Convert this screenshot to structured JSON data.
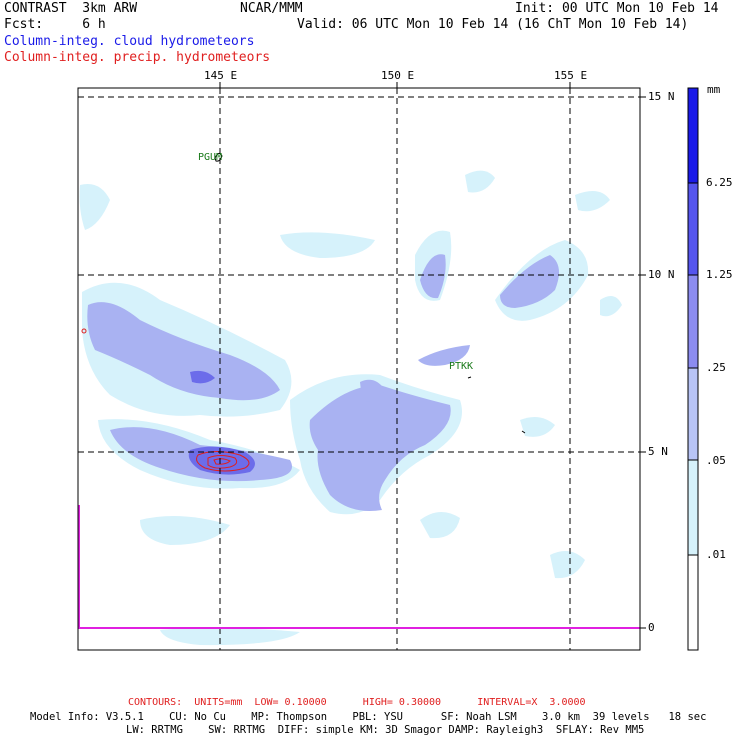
{
  "header": {
    "model": "CONTRAST  3km ARW",
    "forecast": "Fcst:     6 h",
    "org": "NCAR/MMM",
    "init": "Init: 00 UTC Mon 10 Feb 14",
    "valid": "Valid: 06 UTC Mon 10 Feb 14 (16 ChT Mon 10 Feb 14)",
    "field1": "Column-integ. cloud hydrometeors",
    "field2": "Column-integ. precip. hydrometeors"
  },
  "map": {
    "lon_labels": [
      "145 E",
      "150 E",
      "155 E"
    ],
    "lat_labels": [
      "15 N",
      "10 N",
      "5 N",
      "0"
    ],
    "stations": [
      "PGUM",
      "PTKK"
    ]
  },
  "colorbar": {
    "unit": "mm",
    "levels": [
      "6.25",
      "1.25",
      ".25",
      ".05",
      ".01"
    ],
    "colors": [
      "#1a1ae8",
      "#5555ee",
      "#8c8cf0",
      "#b8c4f6",
      "#d6f2fb",
      "#ffffff"
    ]
  },
  "footer": {
    "contours": "CONTOURS:  UNITS=mm  LOW= 0.10000      HIGH= 0.30000      INTERVAL=X  3.0000",
    "model_info_1": "Model Info: V3.5.1    CU: No Cu    MP: Thompson    PBL: YSU      SF: Noah LSM    3.0 km  39 levels   18 sec",
    "model_info_2": "LW: RRTMG    SW: RRTMG  DIFF: simple KM: 3D Smagor DAMP: Rayleigh3  SFLAY: Rev MM5"
  }
}
